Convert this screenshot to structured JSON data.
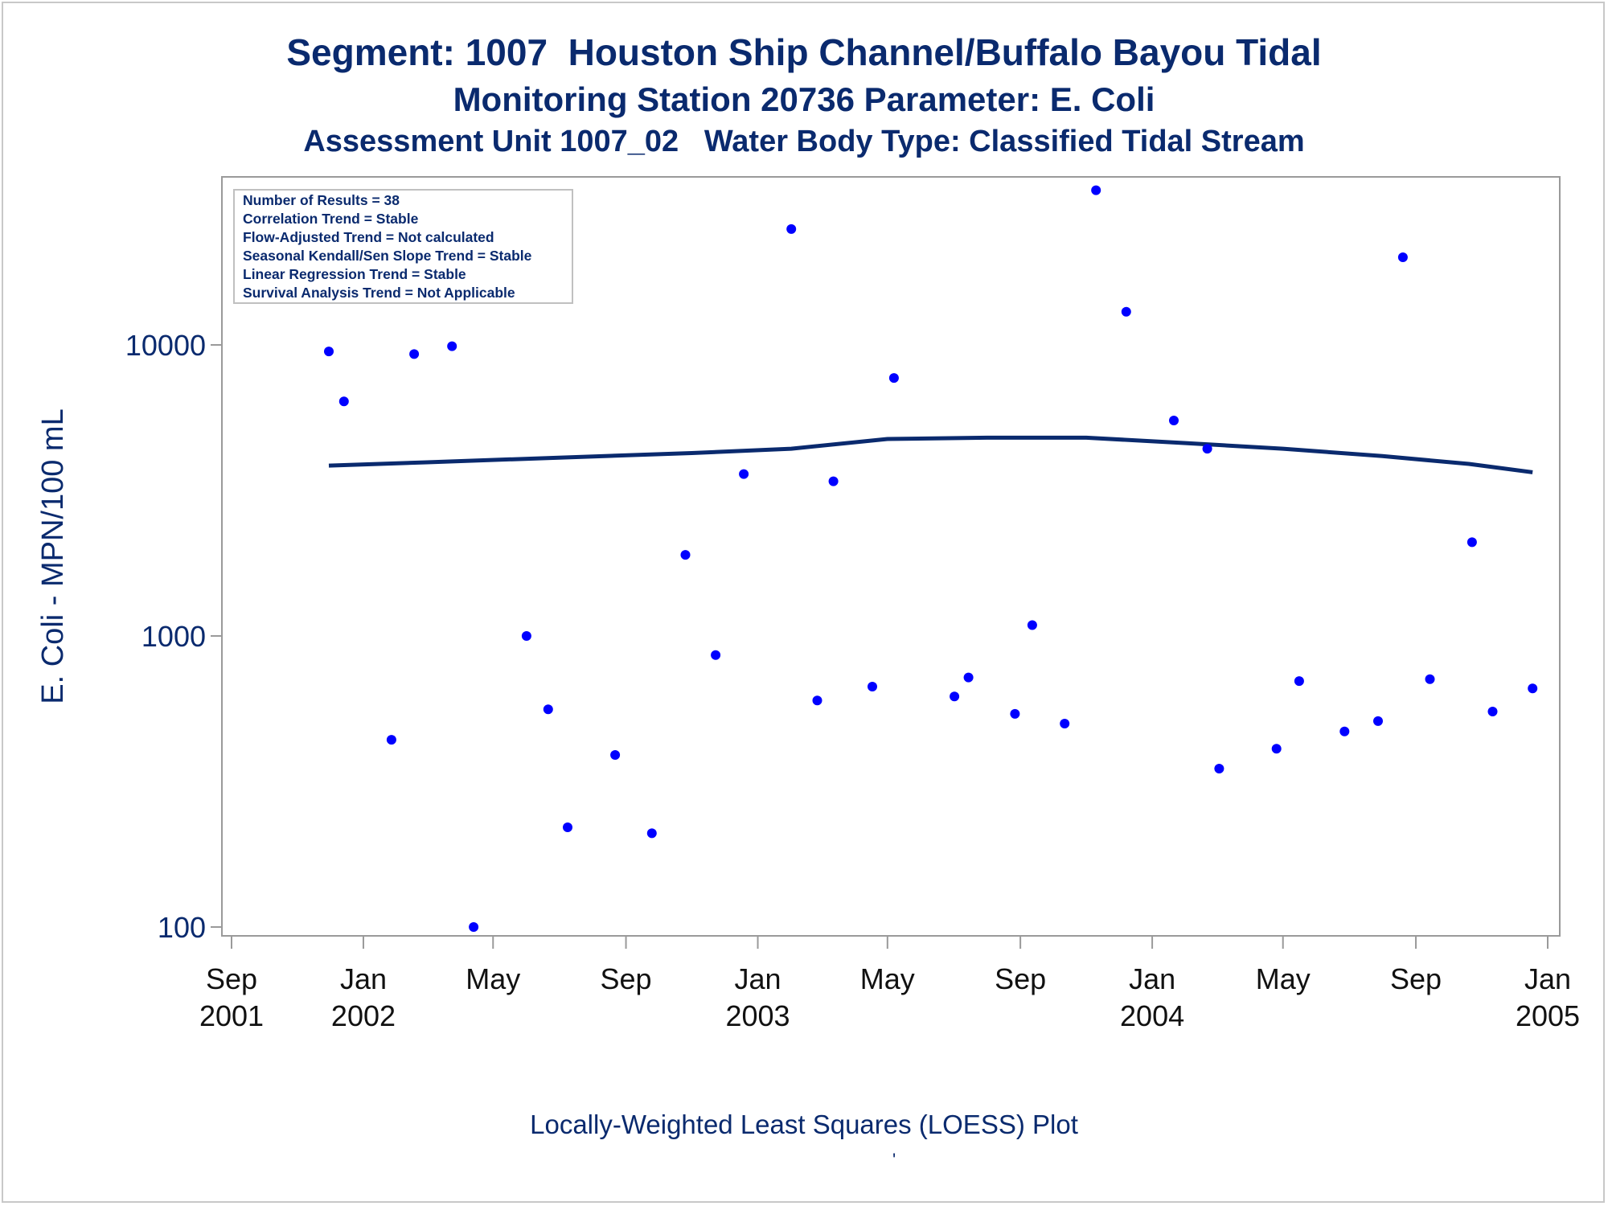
{
  "titles": {
    "line1": "Segment: 1007  Houston Ship Channel/Buffalo Bayou Tidal",
    "line2": "Monitoring Station 20736 Parameter: E. Coli",
    "line3": "Assessment Unit 1007_02   Water Body Type: Classified Tidal Stream"
  },
  "footnote": "Locally-Weighted Least Squares (LOESS) Plot",
  "footnote_mark": "'",
  "chart_data": {
    "type": "scatter",
    "ylabel": "E. Coli - MPN/100 mL",
    "y_scale": "log",
    "ylim": [
      90,
      45000
    ],
    "xlim": [
      "2001-08-25",
      "2005-01-20"
    ],
    "y_ticks": [
      {
        "value": 100,
        "label": "100"
      },
      {
        "value": 1000,
        "label": "1000"
      },
      {
        "value": 10000,
        "label": "10000"
      }
    ],
    "x_ticks": [
      {
        "date": "2001-09-01",
        "label": [
          "Sep",
          "2001"
        ]
      },
      {
        "date": "2002-01-01",
        "label": [
          "Jan",
          "2002"
        ]
      },
      {
        "date": "2002-05-01",
        "label": [
          "May",
          ""
        ]
      },
      {
        "date": "2002-09-01",
        "label": [
          "Sep",
          ""
        ]
      },
      {
        "date": "2003-01-01",
        "label": [
          "Jan",
          "2003"
        ]
      },
      {
        "date": "2003-05-01",
        "label": [
          "May",
          ""
        ]
      },
      {
        "date": "2003-09-01",
        "label": [
          "Sep",
          ""
        ]
      },
      {
        "date": "2004-01-01",
        "label": [
          "Jan",
          "2004"
        ]
      },
      {
        "date": "2004-05-01",
        "label": [
          "May",
          ""
        ]
      },
      {
        "date": "2004-09-01",
        "label": [
          "Sep",
          ""
        ]
      },
      {
        "date": "2005-01-01",
        "label": [
          "Jan",
          "2005"
        ]
      }
    ],
    "stats_box": [
      "Number of Results = 38",
      "Correlation Trend = Stable",
      "Flow-Adjusted Trend = Not calculated",
      "Seasonal Kendall/Sen Slope Trend = Stable",
      "Linear Regression Trend = Stable",
      "Survival Analysis Trend = Not Applicable"
    ],
    "point_color": "#0000ff",
    "line_color": "#0a2a6e",
    "points": [
      {
        "x": "2001-11-30",
        "y": 9500
      },
      {
        "x": "2001-12-14",
        "y": 6400
      },
      {
        "x": "2002-01-27",
        "y": 440
      },
      {
        "x": "2002-02-17",
        "y": 9300
      },
      {
        "x": "2002-03-24",
        "y": 9900
      },
      {
        "x": "2002-04-13",
        "y": 100
      },
      {
        "x": "2002-06-01",
        "y": 1000
      },
      {
        "x": "2002-06-21",
        "y": 560
      },
      {
        "x": "2002-07-09",
        "y": 220
      },
      {
        "x": "2002-08-22",
        "y": 390
      },
      {
        "x": "2002-09-25",
        "y": 210
      },
      {
        "x": "2002-10-26",
        "y": 1900
      },
      {
        "x": "2002-11-23",
        "y": 860
      },
      {
        "x": "2002-12-19",
        "y": 3600
      },
      {
        "x": "2003-02-01",
        "y": 25000
      },
      {
        "x": "2003-02-25",
        "y": 600
      },
      {
        "x": "2003-03-12",
        "y": 3400
      },
      {
        "x": "2003-04-17",
        "y": 670
      },
      {
        "x": "2003-05-07",
        "y": 7700
      },
      {
        "x": "2003-07-02",
        "y": 620
      },
      {
        "x": "2003-07-15",
        "y": 720
      },
      {
        "x": "2003-08-27",
        "y": 540
      },
      {
        "x": "2003-09-12",
        "y": 1090
      },
      {
        "x": "2003-10-12",
        "y": 500
      },
      {
        "x": "2003-11-10",
        "y": 34000
      },
      {
        "x": "2003-12-08",
        "y": 13000
      },
      {
        "x": "2004-01-21",
        "y": 5500
      },
      {
        "x": "2004-02-21",
        "y": 4400
      },
      {
        "x": "2004-03-03",
        "y": 350
      },
      {
        "x": "2004-04-25",
        "y": 410
      },
      {
        "x": "2004-05-16",
        "y": 700
      },
      {
        "x": "2004-06-27",
        "y": 470
      },
      {
        "x": "2004-07-28",
        "y": 510
      },
      {
        "x": "2004-08-20",
        "y": 20000
      },
      {
        "x": "2004-09-14",
        "y": 710
      },
      {
        "x": "2004-10-23",
        "y": 2100
      },
      {
        "x": "2004-11-11",
        "y": 550
      },
      {
        "x": "2004-12-18",
        "y": 660
      }
    ],
    "loess": [
      {
        "x": "2001-11-30",
        "y": 3850
      },
      {
        "x": "2002-03-01",
        "y": 3950
      },
      {
        "x": "2002-07-01",
        "y": 4100
      },
      {
        "x": "2002-11-01",
        "y": 4250
      },
      {
        "x": "2003-02-01",
        "y": 4400
      },
      {
        "x": "2003-05-01",
        "y": 4750
      },
      {
        "x": "2003-08-01",
        "y": 4800
      },
      {
        "x": "2003-11-01",
        "y": 4800
      },
      {
        "x": "2004-02-01",
        "y": 4600
      },
      {
        "x": "2004-05-01",
        "y": 4400
      },
      {
        "x": "2004-08-01",
        "y": 4150
      },
      {
        "x": "2004-10-20",
        "y": 3900
      },
      {
        "x": "2004-12-18",
        "y": 3650
      }
    ]
  }
}
